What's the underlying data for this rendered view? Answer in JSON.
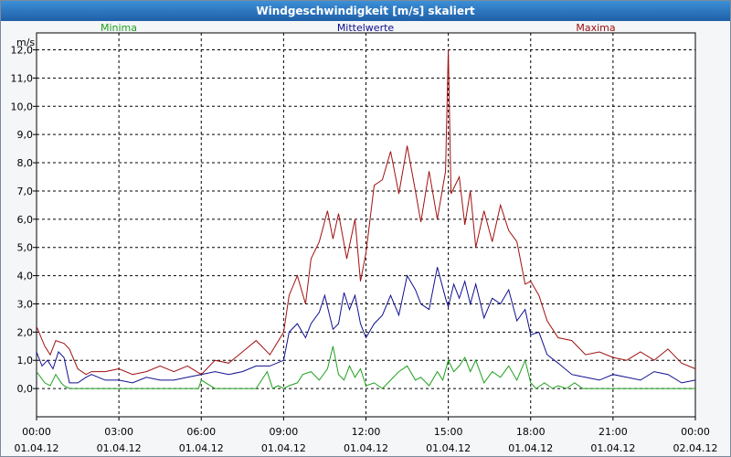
{
  "window": {
    "title": "Windgeschwindigkeit [m/s] skaliert"
  },
  "colors": {
    "min": "#20a020",
    "mean": "#101090",
    "max": "#a01010"
  },
  "chart_data": {
    "type": "line",
    "title": "Windgeschwindigkeit [m/s] skaliert",
    "ylabel": "m/s",
    "xlabel": "",
    "ylim": [
      -1.0,
      12.6
    ],
    "xlim": [
      0,
      24
    ],
    "grid": true,
    "y_ticks": [
      "12,0",
      "11,0",
      "10,0",
      "9,0",
      "8,0",
      "7,0",
      "6,0",
      "5,0",
      "4,0",
      "3,0",
      "2,0",
      "1,0",
      "0,0"
    ],
    "y_tick_values": [
      12,
      11,
      10,
      9,
      8,
      7,
      6,
      5,
      4,
      3,
      2,
      1,
      0
    ],
    "x_ticks": [
      {
        "time": "00:00",
        "date": "01.04.12",
        "hour": 0
      },
      {
        "time": "03:00",
        "date": "01.04.12",
        "hour": 3
      },
      {
        "time": "06:00",
        "date": "01.04.12",
        "hour": 6
      },
      {
        "time": "09:00",
        "date": "01.04.12",
        "hour": 9
      },
      {
        "time": "12:00",
        "date": "01.04.12",
        "hour": 12
      },
      {
        "time": "15:00",
        "date": "01.04.12",
        "hour": 15
      },
      {
        "time": "18:00",
        "date": "01.04.12",
        "hour": 18
      },
      {
        "time": "21:00",
        "date": "01.04.12",
        "hour": 21
      },
      {
        "time": "00:00",
        "date": "02.04.12",
        "hour": 24
      }
    ],
    "series": [
      {
        "name": "Minima",
        "x": [
          0,
          0.3,
          0.5,
          0.7,
          0.9,
          1.0,
          1.2,
          1.5,
          1.8,
          2.0,
          2.5,
          3.0,
          3.5,
          4.0,
          4.5,
          5.0,
          5.5,
          5.9,
          6.0,
          6.5,
          7.0,
          7.5,
          8.0,
          8.4,
          8.6,
          8.8,
          9.0,
          9.2,
          9.5,
          9.7,
          10.0,
          10.3,
          10.6,
          10.8,
          11.0,
          11.2,
          11.4,
          11.6,
          11.8,
          12.0,
          12.3,
          12.6,
          12.9,
          13.2,
          13.5,
          13.8,
          14.0,
          14.3,
          14.6,
          14.8,
          15.0,
          15.2,
          15.4,
          15.6,
          15.8,
          16.0,
          16.3,
          16.6,
          16.9,
          17.2,
          17.5,
          17.8,
          18.0,
          18.2,
          18.5,
          18.8,
          19.0,
          19.3,
          19.6,
          19.9,
          20.2,
          20.5,
          21.0,
          21.5,
          22.0,
          22.5,
          23.0,
          23.5,
          24.0
        ],
        "values": [
          0.6,
          0.2,
          0.1,
          0.5,
          0.2,
          0.1,
          0.0,
          0.0,
          0.0,
          0.0,
          0.0,
          0.0,
          0.0,
          0.0,
          0.0,
          0.0,
          0.0,
          0.0,
          0.3,
          0.0,
          0.0,
          0.0,
          0.0,
          0.6,
          0.0,
          0.1,
          0.0,
          0.1,
          0.2,
          0.5,
          0.6,
          0.3,
          0.7,
          1.5,
          0.5,
          0.3,
          0.8,
          0.4,
          0.7,
          0.1,
          0.2,
          0.0,
          0.3,
          0.6,
          0.8,
          0.3,
          0.4,
          0.1,
          0.6,
          0.3,
          1.0,
          0.6,
          0.8,
          1.1,
          0.6,
          1.0,
          0.2,
          0.6,
          0.4,
          0.8,
          0.3,
          1.0,
          0.2,
          0.0,
          0.2,
          0.0,
          0.1,
          0.0,
          0.2,
          0.0,
          0.0,
          0.0,
          0.0,
          0.0,
          0.0,
          0.0,
          0.0,
          0.0,
          0.0
        ]
      },
      {
        "name": "Mittelwerte",
        "x": [
          0,
          0.2,
          0.4,
          0.6,
          0.8,
          1.0,
          1.2,
          1.5,
          1.8,
          2.0,
          2.5,
          3.0,
          3.5,
          4.0,
          4.5,
          5.0,
          5.5,
          6.0,
          6.5,
          7.0,
          7.5,
          8.0,
          8.5,
          9.0,
          9.2,
          9.5,
          9.8,
          10.0,
          10.3,
          10.5,
          10.8,
          11.0,
          11.2,
          11.4,
          11.6,
          11.8,
          12.0,
          12.3,
          12.6,
          12.9,
          13.2,
          13.5,
          13.8,
          14.0,
          14.3,
          14.6,
          14.9,
          15.0,
          15.2,
          15.4,
          15.6,
          15.8,
          16.0,
          16.3,
          16.6,
          16.9,
          17.2,
          17.5,
          17.8,
          18.0,
          18.3,
          18.6,
          19.0,
          19.5,
          20.0,
          20.5,
          21.0,
          21.5,
          22.0,
          22.5,
          23.0,
          23.5,
          24.0
        ],
        "values": [
          1.3,
          0.8,
          1.0,
          0.7,
          1.3,
          1.1,
          0.2,
          0.2,
          0.4,
          0.5,
          0.3,
          0.3,
          0.2,
          0.4,
          0.3,
          0.3,
          0.4,
          0.5,
          0.6,
          0.5,
          0.6,
          0.8,
          0.8,
          1.0,
          2.0,
          2.3,
          1.8,
          2.3,
          2.7,
          3.3,
          2.1,
          2.3,
          3.4,
          2.8,
          3.3,
          2.3,
          1.8,
          2.3,
          2.6,
          3.3,
          2.6,
          4.0,
          3.5,
          3.0,
          2.8,
          4.3,
          3.2,
          2.9,
          3.7,
          3.2,
          3.8,
          3.0,
          3.7,
          2.5,
          3.2,
          3.0,
          3.5,
          2.4,
          2.8,
          1.9,
          2.0,
          1.2,
          0.9,
          0.5,
          0.4,
          0.3,
          0.5,
          0.4,
          0.3,
          0.6,
          0.5,
          0.2,
          0.3
        ]
      },
      {
        "name": "Maxima",
        "x": [
          0,
          0.3,
          0.5,
          0.7,
          1.0,
          1.2,
          1.5,
          1.8,
          2.0,
          2.5,
          3.0,
          3.5,
          4.0,
          4.5,
          5.0,
          5.5,
          6.0,
          6.5,
          7.0,
          7.5,
          8.0,
          8.5,
          9.0,
          9.2,
          9.5,
          9.8,
          10.0,
          10.3,
          10.6,
          10.8,
          11.0,
          11.3,
          11.6,
          11.8,
          12.0,
          12.3,
          12.6,
          12.9,
          13.2,
          13.5,
          13.8,
          14.0,
          14.3,
          14.6,
          14.9,
          15.0,
          15.1,
          15.2,
          15.4,
          15.6,
          15.8,
          16.0,
          16.3,
          16.6,
          16.9,
          17.2,
          17.5,
          17.8,
          18.0,
          18.3,
          18.6,
          19.0,
          19.5,
          20.0,
          20.5,
          21.0,
          21.5,
          22.0,
          22.5,
          23.0,
          23.5,
          24.0
        ],
        "values": [
          2.2,
          1.5,
          1.2,
          1.7,
          1.6,
          1.4,
          0.7,
          0.5,
          0.6,
          0.6,
          0.7,
          0.5,
          0.6,
          0.8,
          0.6,
          0.8,
          0.5,
          1.0,
          0.9,
          1.3,
          1.7,
          1.2,
          2.0,
          3.3,
          4.0,
          3.0,
          4.6,
          5.2,
          6.3,
          5.3,
          6.2,
          4.6,
          6.0,
          3.8,
          4.8,
          7.2,
          7.4,
          8.4,
          6.9,
          8.6,
          7.0,
          5.9,
          7.7,
          6.0,
          7.7,
          12.0,
          6.9,
          7.1,
          7.5,
          5.8,
          7.0,
          5.0,
          6.3,
          5.2,
          6.5,
          5.6,
          5.2,
          3.7,
          3.8,
          3.3,
          2.4,
          1.8,
          1.7,
          1.2,
          1.3,
          1.1,
          1.0,
          1.3,
          1.0,
          1.4,
          0.9,
          0.7
        ]
      }
    ]
  }
}
